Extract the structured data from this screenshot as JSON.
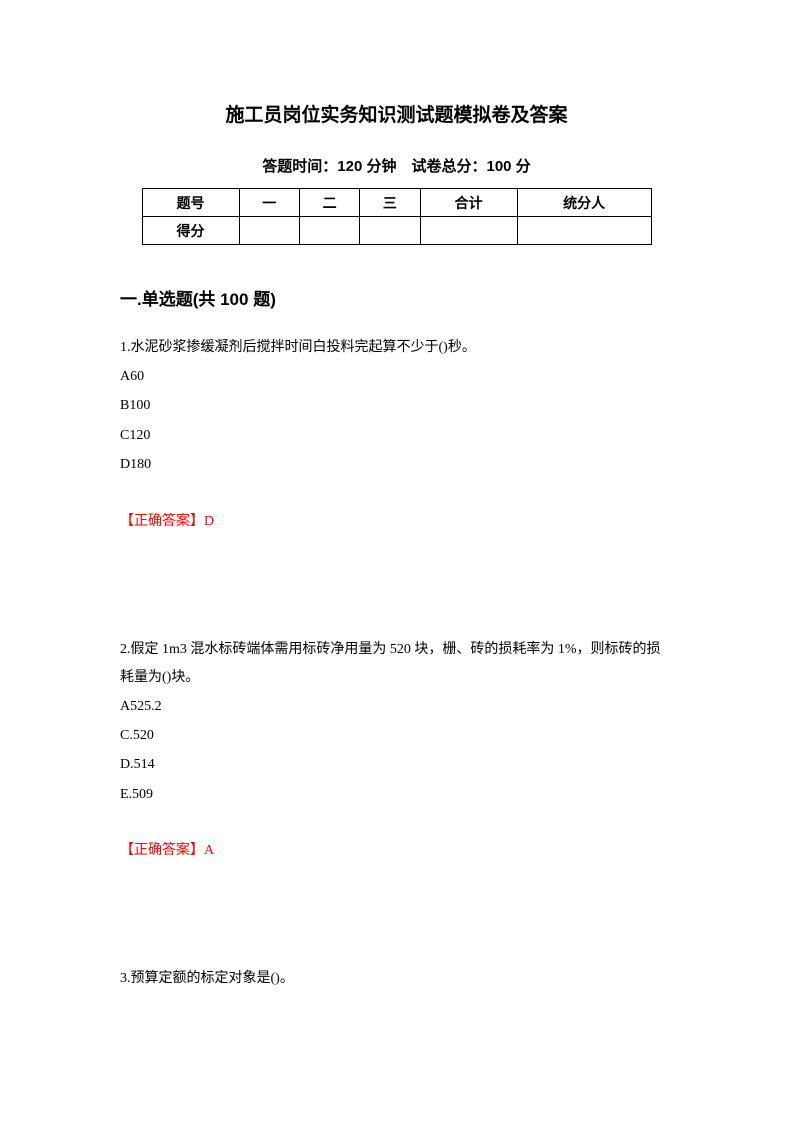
{
  "title": "施工员岗位实务知识测试题模拟卷及答案",
  "subtitle": "答题时间：120 分钟　试卷总分：100 分",
  "table": {
    "headers": [
      "题号",
      "一",
      "二",
      "三",
      "合计",
      "统分人"
    ],
    "row_label": "得分"
  },
  "section": "一.单选题(共 100 题)",
  "q1": {
    "text": "1.水泥砂浆掺缓凝剂后搅拌时间白投料完起算不少于()秒。",
    "a": "A60",
    "b": "B100",
    "c": "C120",
    "d": "D180",
    "answer": "【正确答案】D"
  },
  "q2": {
    "text": "2.假定 1m3 混水标砖端体需用标砖净用量为 520 块，栅、砖的损耗率为 1%，则标砖的损耗量为()块。",
    "a": "A525.2",
    "c": "C.520",
    "d": "D.514",
    "e": "E.509",
    "answer": "【正确答案】A"
  },
  "q3": {
    "text": "3.预算定额的标定对象是()。"
  }
}
